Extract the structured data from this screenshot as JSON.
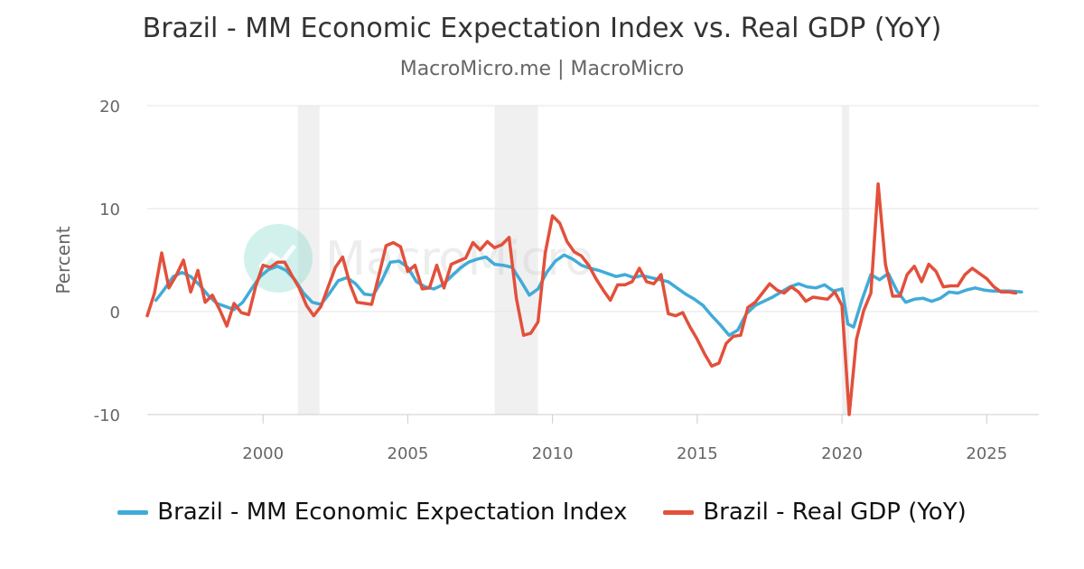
{
  "chart_data": {
    "type": "line",
    "title": "Brazil - MM Economic Expectation Index vs. Real GDP (YoY)",
    "subtitle": "MacroMicro.me | MacroMicro",
    "watermark": "MacroMicro",
    "ylabel": "Percent",
    "ylim": [
      -10,
      20
    ],
    "yticks": [
      20,
      10,
      0,
      -10
    ],
    "xlim": [
      1996.0,
      2026.8
    ],
    "xticks": [
      2000,
      2005,
      2010,
      2015,
      2020,
      2025
    ],
    "grid": true,
    "legend_position": "bottom",
    "recession_bands": [
      [
        2001.2,
        2001.95
      ],
      [
        2008.0,
        2009.5
      ],
      [
        2020.0,
        2020.25
      ]
    ],
    "series": [
      {
        "name": "Brazil - MM Economic Expectation Index",
        "color": "#41abd8",
        "x": [
          1996.3,
          1996.6,
          1996.9,
          1997.2,
          1997.5,
          1997.8,
          1998.1,
          1998.4,
          1998.7,
          1999.0,
          1999.3,
          1999.6,
          1999.9,
          2000.2,
          2000.5,
          2000.8,
          2001.1,
          2001.4,
          2001.7,
          2002.0,
          2002.3,
          2002.6,
          2002.9,
          2003.2,
          2003.5,
          2003.8,
          2004.1,
          2004.4,
          2004.7,
          2005.0,
          2005.3,
          2005.6,
          2005.9,
          2006.2,
          2006.5,
          2006.8,
          2007.1,
          2007.4,
          2007.7,
          2008.0,
          2008.3,
          2008.6,
          2008.9,
          2009.2,
          2009.5,
          2009.8,
          2010.1,
          2010.4,
          2010.7,
          2011.0,
          2011.3,
          2011.6,
          2011.9,
          2012.2,
          2012.5,
          2012.8,
          2013.1,
          2013.4,
          2013.7,
          2014.0,
          2014.3,
          2014.6,
          2014.9,
          2015.2,
          2015.5,
          2015.8,
          2016.1,
          2016.4,
          2016.7,
          2017.0,
          2017.3,
          2017.6,
          2017.9,
          2018.2,
          2018.5,
          2018.8,
          2019.1,
          2019.4,
          2019.7,
          2020.0,
          2020.2,
          2020.4,
          2020.7,
          2021.0,
          2021.3,
          2021.6,
          2021.9,
          2022.2,
          2022.5,
          2022.8,
          2023.1,
          2023.4,
          2023.7,
          2024.0,
          2024.3,
          2024.6,
          2024.9,
          2025.2,
          2025.5,
          2025.8,
          2026.2
        ],
        "values": [
          1.1,
          2.2,
          3.4,
          3.8,
          3.4,
          2.6,
          1.6,
          0.8,
          0.5,
          0.2,
          0.9,
          2.2,
          3.4,
          4.1,
          4.4,
          4.0,
          3.1,
          1.8,
          0.9,
          0.7,
          1.8,
          3.0,
          3.3,
          2.7,
          1.7,
          1.6,
          3.0,
          4.8,
          4.9,
          4.3,
          2.9,
          2.4,
          2.2,
          2.6,
          3.4,
          4.2,
          4.8,
          5.1,
          5.3,
          4.6,
          4.5,
          4.3,
          3.0,
          1.6,
          2.2,
          3.8,
          4.9,
          5.5,
          5.1,
          4.5,
          4.2,
          4.0,
          3.7,
          3.4,
          3.6,
          3.3,
          3.5,
          3.3,
          3.1,
          2.9,
          2.3,
          1.7,
          1.2,
          0.6,
          -0.4,
          -1.3,
          -2.3,
          -1.8,
          -0.2,
          0.6,
          1.0,
          1.4,
          1.9,
          2.4,
          2.7,
          2.4,
          2.3,
          2.6,
          2.0,
          2.2,
          -1.2,
          -1.5,
          1.2,
          3.6,
          3.1,
          3.7,
          2.0,
          0.9,
          1.2,
          1.3,
          1.0,
          1.3,
          1.9,
          1.8,
          2.1,
          2.3,
          2.1,
          2.0,
          2.0,
          2.0,
          1.9
        ]
      },
      {
        "name": "Brazil - Real GDP (YoY)",
        "color": "#e2503b",
        "x": [
          1996.0,
          1996.25,
          1996.5,
          1996.75,
          1997.0,
          1997.25,
          1997.5,
          1997.75,
          1998.0,
          1998.25,
          1998.5,
          1998.75,
          1999.0,
          1999.25,
          1999.5,
          1999.75,
          2000.0,
          2000.25,
          2000.5,
          2000.75,
          2001.0,
          2001.25,
          2001.5,
          2001.75,
          2002.0,
          2002.25,
          2002.5,
          2002.75,
          2003.0,
          2003.25,
          2003.5,
          2003.75,
          2004.0,
          2004.25,
          2004.5,
          2004.75,
          2005.0,
          2005.25,
          2005.5,
          2005.75,
          2006.0,
          2006.25,
          2006.5,
          2006.75,
          2007.0,
          2007.25,
          2007.5,
          2007.75,
          2008.0,
          2008.25,
          2008.5,
          2008.75,
          2009.0,
          2009.25,
          2009.5,
          2009.75,
          2010.0,
          2010.25,
          2010.5,
          2010.75,
          2011.0,
          2011.25,
          2011.5,
          2011.75,
          2012.0,
          2012.25,
          2012.5,
          2012.75,
          2013.0,
          2013.25,
          2013.5,
          2013.75,
          2014.0,
          2014.25,
          2014.5,
          2014.75,
          2015.0,
          2015.25,
          2015.5,
          2015.75,
          2016.0,
          2016.25,
          2016.5,
          2016.75,
          2017.0,
          2017.25,
          2017.5,
          2017.75,
          2018.0,
          2018.25,
          2018.5,
          2018.75,
          2019.0,
          2019.25,
          2019.5,
          2019.75,
          2020.0,
          2020.25,
          2020.5,
          2020.75,
          2021.0,
          2021.25,
          2021.5,
          2021.75,
          2022.0,
          2022.25,
          2022.5,
          2022.75,
          2023.0,
          2023.25,
          2023.5,
          2023.75,
          2024.0,
          2024.25,
          2024.5,
          2024.75,
          2025.0,
          2025.25,
          2025.5,
          2025.75,
          2026.0
        ],
        "values": [
          -0.4,
          1.8,
          5.7,
          2.3,
          3.5,
          5.0,
          1.9,
          4.0,
          0.9,
          1.6,
          0.2,
          -1.4,
          0.8,
          -0.1,
          -0.3,
          2.5,
          4.5,
          4.3,
          4.8,
          4.8,
          3.5,
          2.3,
          0.6,
          -0.4,
          0.5,
          2.4,
          4.3,
          5.3,
          2.7,
          0.9,
          0.8,
          0.7,
          3.5,
          6.4,
          6.7,
          6.3,
          3.9,
          4.5,
          2.2,
          2.3,
          4.5,
          2.3,
          4.6,
          4.9,
          5.2,
          6.7,
          6.0,
          6.8,
          6.2,
          6.5,
          7.2,
          1.3,
          -2.3,
          -2.1,
          -1.0,
          5.7,
          9.3,
          8.6,
          6.8,
          5.8,
          5.4,
          4.5,
          3.2,
          2.1,
          1.1,
          2.6,
          2.6,
          2.9,
          4.2,
          2.9,
          2.7,
          3.6,
          -0.2,
          -0.4,
          -0.1,
          -1.5,
          -2.7,
          -4.1,
          -5.3,
          -5.0,
          -3.1,
          -2.4,
          -2.3,
          0.4,
          0.9,
          1.8,
          2.7,
          2.1,
          1.8,
          2.4,
          1.9,
          1.0,
          1.4,
          1.3,
          1.2,
          1.9,
          0.6,
          -10.0,
          -2.7,
          0.1,
          1.8,
          12.4,
          4.6,
          1.5,
          1.5,
          3.6,
          4.4,
          2.9,
          4.6,
          3.9,
          2.4,
          2.5,
          2.5,
          3.6,
          4.2,
          3.7,
          3.2,
          2.4,
          1.9,
          1.9,
          1.8
        ]
      }
    ]
  }
}
